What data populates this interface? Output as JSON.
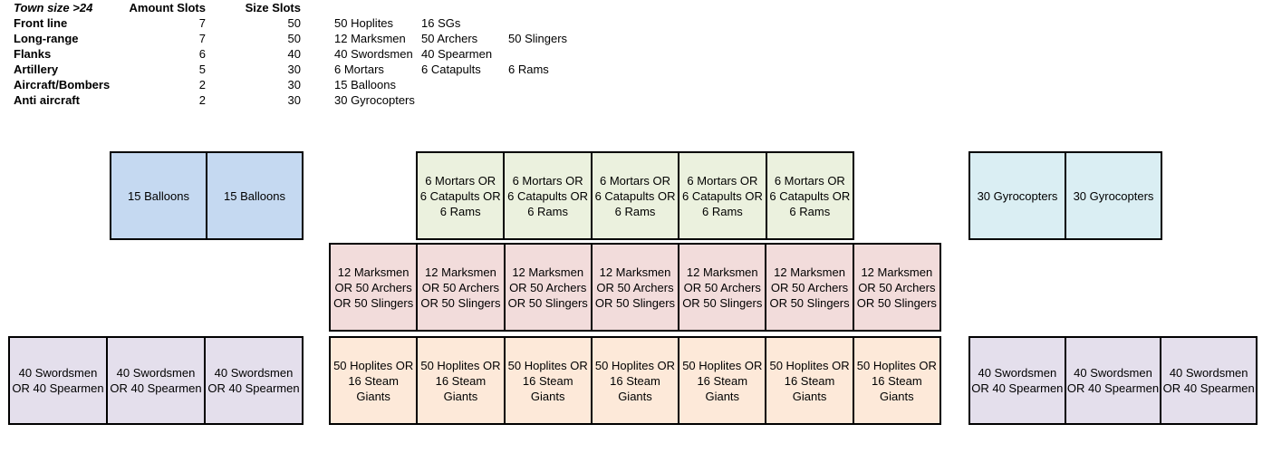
{
  "table": {
    "header": {
      "label": "Town size >24",
      "amount": "Amount Slots",
      "size": "Size Slots"
    },
    "rows": [
      {
        "name": "Front line",
        "amount": "7",
        "size": "50",
        "units": [
          "50 Hoplites",
          "16 SGs",
          ""
        ]
      },
      {
        "name": "Long-range",
        "amount": "7",
        "size": "50",
        "units": [
          "12 Marksmen",
          "50 Archers",
          "50 Slingers"
        ]
      },
      {
        "name": "Flanks",
        "amount": "6",
        "size": "40",
        "units": [
          "40 Swordsmen",
          "40 Spearmen",
          ""
        ]
      },
      {
        "name": "Artillery",
        "amount": "5",
        "size": "30",
        "units": [
          "6 Mortars",
          "6 Catapults",
          "6 Rams"
        ]
      },
      {
        "name": "Aircraft/Bombers",
        "amount": "2",
        "size": "30",
        "units": [
          "15 Balloons",
          "",
          ""
        ]
      },
      {
        "name": "Anti aircraft",
        "amount": "2",
        "size": "30",
        "units": [
          "30 Gyrocopters",
          "",
          ""
        ]
      }
    ]
  },
  "formation": {
    "bombers": {
      "color": "#c5d9f1",
      "cells": [
        "15 Balloons",
        "15 Balloons"
      ]
    },
    "artillery": {
      "color": "#ebf1de",
      "cells": [
        "6 Mortars OR\n6 Catapults OR\n6 Rams",
        "6 Mortars OR\n6 Catapults OR\n6 Rams",
        "6 Mortars OR\n6 Catapults OR\n6 Rams",
        "6 Mortars OR\n6 Catapults OR\n6 Rams",
        "6 Mortars OR\n6 Catapults OR\n6 Rams"
      ]
    },
    "anti_aircraft": {
      "color": "#daeef3",
      "cells": [
        "30 Gyrocopters",
        "30 Gyrocopters"
      ]
    },
    "long_range": {
      "color": "#f2dcdb",
      "cells": [
        "12 Marksmen\nOR 50 Archers\nOR 50 Slingers",
        "12 Marksmen\nOR 50 Archers\nOR 50 Slingers",
        "12 Marksmen\nOR 50 Archers\nOR 50 Slingers",
        "12 Marksmen\nOR 50 Archers\nOR 50 Slingers",
        "12 Marksmen\nOR 50 Archers\nOR 50 Slingers",
        "12 Marksmen\nOR 50 Archers\nOR 50 Slingers",
        "12 Marksmen\nOR 50 Archers\nOR 50 Slingers"
      ]
    },
    "flank_left": {
      "color": "#e4dfec",
      "cells": [
        "40 Swordsmen\nOR 40 Spearmen",
        "40 Swordsmen\nOR 40 Spearmen",
        "40 Swordsmen\nOR 40 Spearmen"
      ]
    },
    "front_line": {
      "color": "#fde9d9",
      "cells": [
        "50 Hoplites OR\n16 Steam\nGiants",
        "50 Hoplites OR\n16 Steam\nGiants",
        "50 Hoplites OR\n16 Steam\nGiants",
        "50 Hoplites OR\n16 Steam\nGiants",
        "50 Hoplites OR\n16 Steam\nGiants",
        "50 Hoplites OR\n16 Steam\nGiants",
        "50 Hoplites OR\n16 Steam\nGiants"
      ]
    },
    "flank_right": {
      "color": "#e4dfec",
      "cells": [
        "40 Swordsmen\nOR 40 Spearmen",
        "40 Swordsmen\nOR 40 Spearmen",
        "40 Swordsmen\nOR 40 Spearmen"
      ]
    }
  }
}
